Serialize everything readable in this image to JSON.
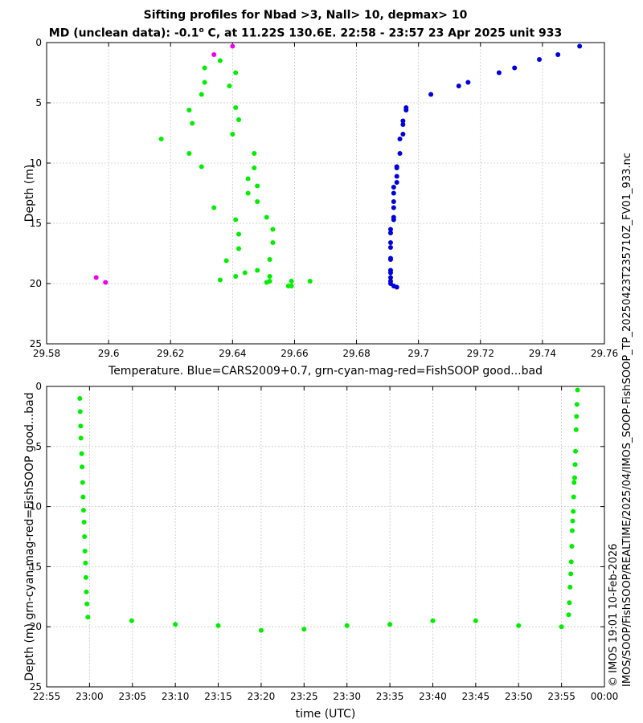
{
  "header": {
    "title_line1": "Sifting profiles for Nbad >3, Nall> 10, depmax> 10",
    "title_line2_prefix": "MD (unclean data): -0.1",
    "title_line2_degree": "o",
    "title_line2_suffix": " C, at 11.22S 130.6E. 22:58 - 23:57 23 Apr 2025 unit 933"
  },
  "side_labels": {
    "file_path": "IMOS/SOOP/FishSOOP/REALTIME/2025/04/IMOS_SOOP-FishSOOP_TP_20250423T235710Z_FV01_933.nc",
    "credit": "© IMOS 19:01 10-Feb-2026"
  },
  "colors": {
    "cars": "#0000dd",
    "good": "#00ee00",
    "bad": "#ee00ee",
    "grid": "#c8c8c8"
  },
  "chart_data": [
    {
      "type": "scatter",
      "xlabel": "Temperature. Blue=CARS2009+0.7, grn-cyan-mag-red=FishSOOP good...bad",
      "ylabel": "Depth (m)",
      "xlim": [
        29.58,
        29.76
      ],
      "ylim": [
        25,
        0
      ],
      "y_inverted": true,
      "grid": true,
      "xticks": [
        "29.58",
        "29.6",
        "29.62",
        "29.64",
        "29.66",
        "29.68",
        "29.7",
        "29.72",
        "29.74",
        "29.76"
      ],
      "yticks": [
        "0",
        "5",
        "10",
        "15",
        "20",
        "25"
      ],
      "series": [
        {
          "name": "CARS2009+0.7",
          "color": "#0000dd",
          "points": [
            [
              29.752,
              0.3
            ],
            [
              29.745,
              1.0
            ],
            [
              29.739,
              1.4
            ],
            [
              29.731,
              2.1
            ],
            [
              29.726,
              2.5
            ],
            [
              29.716,
              3.3
            ],
            [
              29.713,
              3.6
            ],
            [
              29.704,
              4.3
            ],
            [
              29.696,
              5.4
            ],
            [
              29.696,
              5.6
            ],
            [
              29.695,
              6.5
            ],
            [
              29.695,
              6.8
            ],
            [
              29.695,
              7.6
            ],
            [
              29.694,
              8.0
            ],
            [
              29.694,
              9.2
            ],
            [
              29.693,
              10.3
            ],
            [
              29.693,
              10.4
            ],
            [
              29.693,
              11.1
            ],
            [
              29.693,
              11.6
            ],
            [
              29.692,
              12.0
            ],
            [
              29.692,
              12.5
            ],
            [
              29.692,
              13.2
            ],
            [
              29.692,
              13.7
            ],
            [
              29.692,
              14.5
            ],
            [
              29.692,
              14.7
            ],
            [
              29.691,
              15.5
            ],
            [
              29.691,
              15.8
            ],
            [
              29.691,
              16.6
            ],
            [
              29.691,
              17.0
            ],
            [
              29.691,
              17.9
            ],
            [
              29.691,
              18.0
            ],
            [
              29.691,
              18.9
            ],
            [
              29.691,
              19.1
            ],
            [
              29.691,
              19.5
            ],
            [
              29.691,
              19.8
            ],
            [
              29.691,
              20.0
            ],
            [
              29.692,
              20.2
            ],
            [
              29.693,
              20.3
            ]
          ]
        },
        {
          "name": "FishSOOP good",
          "color": "#00ee00",
          "points": [
            [
              29.636,
              1.5
            ],
            [
              29.631,
              2.1
            ],
            [
              29.641,
              2.5
            ],
            [
              29.631,
              3.3
            ],
            [
              29.639,
              3.6
            ],
            [
              29.63,
              4.3
            ],
            [
              29.641,
              5.4
            ],
            [
              29.626,
              5.6
            ],
            [
              29.642,
              6.4
            ],
            [
              29.627,
              6.7
            ],
            [
              29.64,
              7.6
            ],
            [
              29.617,
              8.0
            ],
            [
              29.647,
              9.2
            ],
            [
              29.626,
              9.2
            ],
            [
              29.63,
              10.3
            ],
            [
              29.647,
              10.4
            ],
            [
              29.645,
              11.3
            ],
            [
              29.648,
              11.9
            ],
            [
              29.645,
              12.5
            ],
            [
              29.648,
              13.2
            ],
            [
              29.634,
              13.7
            ],
            [
              29.651,
              14.5
            ],
            [
              29.641,
              14.7
            ],
            [
              29.653,
              15.5
            ],
            [
              29.642,
              15.9
            ],
            [
              29.653,
              16.6
            ],
            [
              29.642,
              17.1
            ],
            [
              29.652,
              18.0
            ],
            [
              29.638,
              18.1
            ],
            [
              29.648,
              18.9
            ],
            [
              29.644,
              19.1
            ],
            [
              29.641,
              19.4
            ],
            [
              29.652,
              19.4
            ],
            [
              29.636,
              19.7
            ],
            [
              29.652,
              19.8
            ],
            [
              29.659,
              19.8
            ],
            [
              29.665,
              19.8
            ],
            [
              29.651,
              19.9
            ],
            [
              29.658,
              20.2
            ],
            [
              29.659,
              20.2
            ]
          ]
        },
        {
          "name": "FishSOOP bad",
          "color": "#ee00ee",
          "points": [
            [
              29.64,
              0.3
            ],
            [
              29.634,
              1.0
            ],
            [
              29.596,
              19.5
            ],
            [
              29.599,
              19.9
            ]
          ]
        }
      ]
    },
    {
      "type": "scatter",
      "xlabel": "time (UTC)",
      "ylabel": "Depth (m) grn-cyan-mag-red=FishSOOP good...bad",
      "xlim": [
        "22:55",
        "00:00"
      ],
      "ylim": [
        25,
        0
      ],
      "y_inverted": true,
      "grid": true,
      "xticks": [
        "22:55",
        "23:00",
        "23:05",
        "23:10",
        "23:15",
        "23:20",
        "23:25",
        "23:30",
        "23:35",
        "23:40",
        "23:45",
        "23:50",
        "23:55",
        "00:00"
      ],
      "yticks": [
        "0",
        "5",
        "10",
        "15",
        "20",
        "25"
      ],
      "series": [
        {
          "name": "FishSOOP good",
          "color": "#00ee00",
          "points": [
            [
              "22:58:52",
              1.0
            ],
            [
              "22:58:55",
              2.1
            ],
            [
              "22:58:58",
              3.3
            ],
            [
              "22:59:00",
              4.3
            ],
            [
              "22:59:05",
              5.6
            ],
            [
              "22:59:08",
              6.7
            ],
            [
              "22:59:12",
              8.0
            ],
            [
              "22:59:15",
              9.2
            ],
            [
              "22:59:18",
              10.3
            ],
            [
              "22:59:22",
              11.3
            ],
            [
              "22:59:25",
              12.5
            ],
            [
              "22:59:28",
              13.7
            ],
            [
              "22:59:32",
              14.7
            ],
            [
              "22:59:35",
              15.9
            ],
            [
              "22:59:38",
              17.1
            ],
            [
              "22:59:42",
              18.1
            ],
            [
              "22:59:48",
              19.2
            ],
            [
              "23:04:55",
              19.5
            ],
            [
              "23:10:00",
              19.8
            ],
            [
              "23:15:00",
              19.9
            ],
            [
              "23:20:00",
              20.3
            ],
            [
              "23:25:00",
              20.2
            ],
            [
              "23:30:00",
              19.9
            ],
            [
              "23:35:00",
              19.8
            ],
            [
              "23:40:00",
              19.5
            ],
            [
              "23:45:00",
              19.5
            ],
            [
              "23:50:00",
              19.9
            ],
            [
              "23:55:00",
              20.0
            ],
            [
              "23:55:50",
              19.0
            ],
            [
              "23:55:55",
              18.0
            ],
            [
              "23:56:00",
              16.7
            ],
            [
              "23:56:05",
              15.6
            ],
            [
              "23:56:08",
              14.6
            ],
            [
              "23:56:12",
              13.3
            ],
            [
              "23:56:15",
              12.0
            ],
            [
              "23:56:18",
              11.2
            ],
            [
              "23:56:22",
              10.4
            ],
            [
              "23:56:25",
              9.2
            ],
            [
              "23:56:28",
              8.0
            ],
            [
              "23:56:32",
              7.6
            ],
            [
              "23:56:35",
              6.5
            ],
            [
              "23:56:38",
              5.4
            ],
            [
              "23:56:42",
              3.6
            ],
            [
              "23:56:45",
              2.5
            ],
            [
              "23:56:48",
              1.5
            ],
            [
              "23:56:52",
              0.3
            ]
          ]
        }
      ]
    }
  ]
}
